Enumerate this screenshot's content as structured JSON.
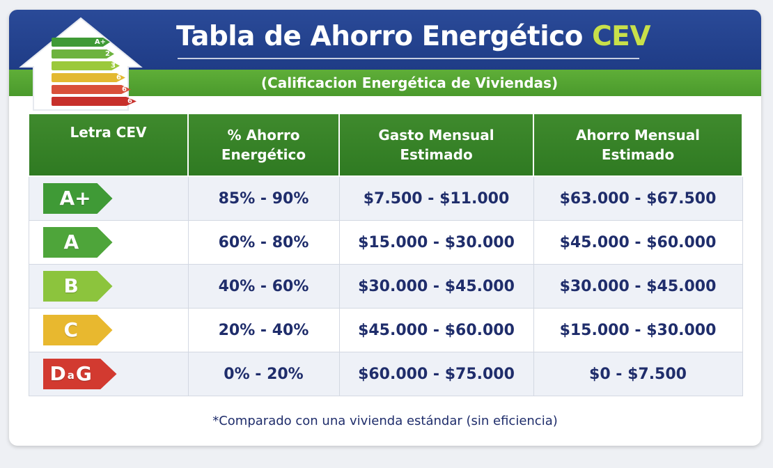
{
  "header": {
    "title_main": "Tabla de Ahorro Energético",
    "title_accent": "CEV",
    "subtitle": "(Calificacion Energética de Viviendas)"
  },
  "logo": {
    "bars": [
      {
        "label": "A+",
        "color": "#3f9a36"
      },
      {
        "label": "2",
        "color": "#6db33f"
      },
      {
        "label": "3",
        "color": "#9bc93b"
      },
      {
        "label": "6",
        "color": "#e3b931"
      },
      {
        "label": "6",
        "color": "#d9503a"
      },
      {
        "label": "6",
        "color": "#c7302b"
      }
    ]
  },
  "table": {
    "headers": [
      "Letra CEV",
      "% Ahorro Energético",
      "Gasto Mensual Estimado",
      "Ahorro Mensual Estimado"
    ],
    "rows": [
      {
        "letter": "A+",
        "color": "#3f9a36",
        "ahorro_pct": "85% - 90%",
        "gasto": "$7.500 - $11.000",
        "ahorro_mensual": "$63.000 - $67.500"
      },
      {
        "letter": "A",
        "color": "#4ea53a",
        "ahorro_pct": "60% - 80%",
        "gasto": "$15.000 - $30.000",
        "ahorro_mensual": "$45.000 - $60.000"
      },
      {
        "letter": "B",
        "color": "#8cc43d",
        "ahorro_pct": "40% - 60%",
        "gasto": "$30.000 - $45.000",
        "ahorro_mensual": "$30.000 - $45.000"
      },
      {
        "letter": "C",
        "color": "#e8b82f",
        "ahorro_pct": "20% - 40%",
        "gasto": "$45.000 - $60.000",
        "ahorro_mensual": "$15.000 - $30.000"
      },
      {
        "letter_start": "D",
        "letter_mid": "a",
        "letter_end": "G",
        "color": "#d23a30",
        "ahorro_pct": "0% - 20%",
        "gasto": "$60.000 - $75.000",
        "ahorro_mensual": "$0 - $7.500"
      }
    ]
  },
  "footnote": "*Comparado con una vivienda estándar (sin eficiencia)",
  "colors": {
    "header_blue": "#1f3c86",
    "header_green": "#4a9a2c",
    "table_header_green": "#347e26",
    "text_navy": "#1f2d6b",
    "accent_lime": "#c8e04a"
  }
}
